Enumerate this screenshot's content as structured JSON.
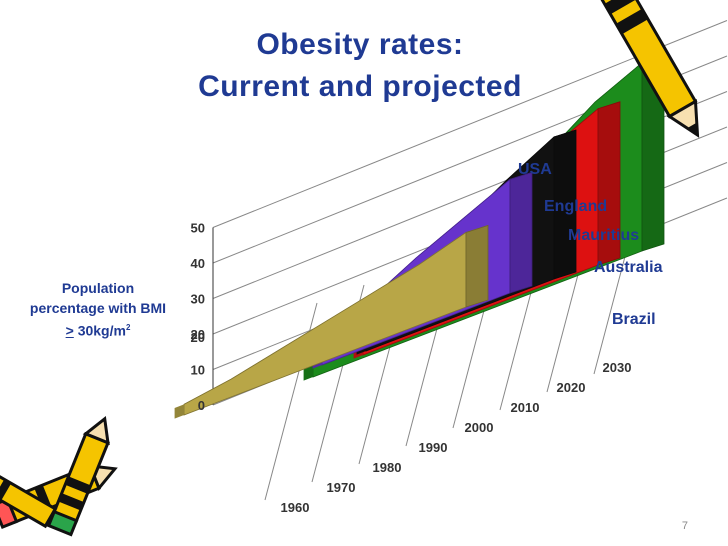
{
  "slide": {
    "title_line1": "Obesity rates:",
    "title_line2": "Current and projected",
    "page_number": "7"
  },
  "chart_data": {
    "type": "area",
    "title": "Obesity rates: Current and projected",
    "ylabel": {
      "prefix": "Population percentage with BMI",
      "operator": ">",
      "value": "30kg/m",
      "superscript": "2"
    },
    "ylim": [
      0,
      50
    ],
    "yticks": [
      "0",
      "10",
      "20",
      "20",
      "30",
      "40",
      "50"
    ],
    "x": [
      "1960",
      "1970",
      "1980",
      "1990",
      "2000",
      "2010",
      "2020",
      "2030"
    ],
    "grid": true,
    "legend": "series labels at right end of each ribbon",
    "series": [
      {
        "name": "USA",
        "color": "#1c8c1c",
        "points": [
          [
            1960,
            13
          ],
          [
            1970,
            15
          ],
          [
            1980,
            15
          ],
          [
            1990,
            22
          ],
          [
            2000,
            30
          ],
          [
            2010,
            38
          ],
          [
            2020,
            47
          ],
          [
            2030,
            53
          ]
        ]
      },
      {
        "name": "England",
        "color": "#dd1111",
        "points": [
          [
            1980,
            7
          ],
          [
            1990,
            15
          ],
          [
            2000,
            22
          ],
          [
            2010,
            30
          ],
          [
            2020,
            38
          ],
          [
            2030,
            44
          ]
        ]
      },
      {
        "name": "Mauritius",
        "color": "#111111",
        "points": [
          [
            1990,
            10
          ],
          [
            2000,
            17
          ],
          [
            2010,
            25
          ],
          [
            2020,
            33
          ],
          [
            2030,
            40
          ]
        ]
      },
      {
        "name": "Australia",
        "color": "#6633cc",
        "points": [
          [
            1990,
            8
          ],
          [
            2000,
            13
          ],
          [
            2010,
            20
          ],
          [
            2020,
            26
          ],
          [
            2030,
            32
          ]
        ]
      },
      {
        "name": "Brazil",
        "color": "#b8a647",
        "points": [
          [
            1970,
            3
          ],
          [
            1980,
            5
          ],
          [
            1990,
            8
          ],
          [
            2000,
            11
          ],
          [
            2010,
            14
          ],
          [
            2020,
            17
          ],
          [
            2030,
            21
          ]
        ]
      }
    ]
  }
}
